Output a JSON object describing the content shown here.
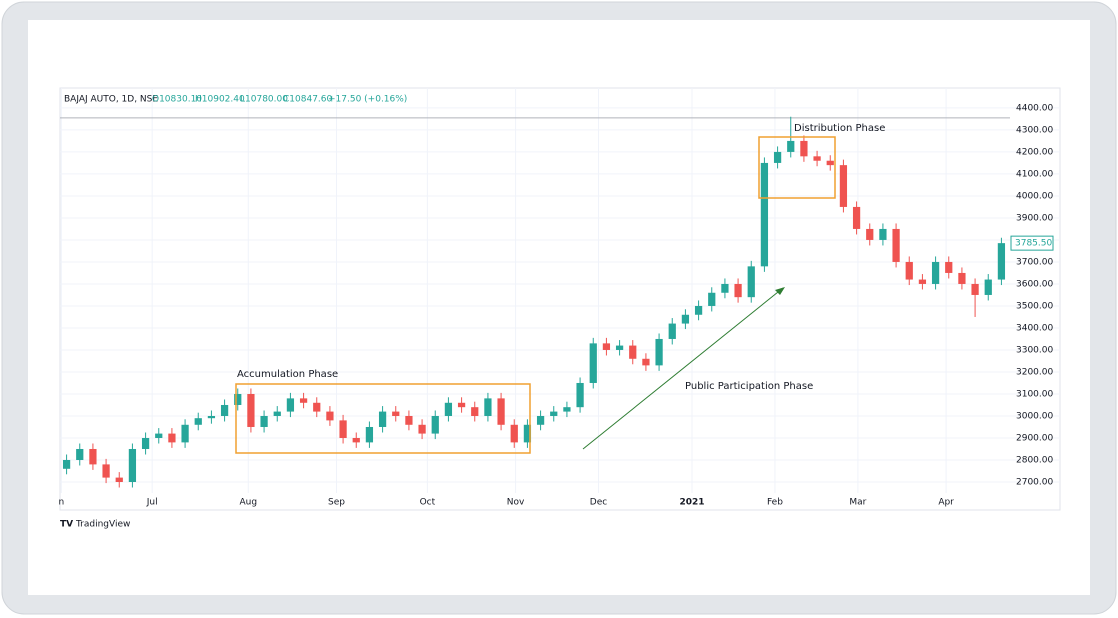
{
  "chart_data": {
    "type": "candlestick",
    "header": {
      "symbol": "BAJAJ AUTO, 1D, NSE",
      "open": "O10830.10",
      "high": "H10902.40",
      "low": "L10780.00",
      "close": "C10847.60",
      "change": "+17.50 (+0.16%)"
    },
    "open": [
      2760,
      2800,
      2850,
      2780,
      2720,
      2700,
      2850,
      2900,
      2920,
      2880,
      2960,
      2990,
      3000,
      3050,
      3100,
      2950,
      3000,
      3020,
      3080,
      3060,
      3020,
      2980,
      2900,
      2880,
      2950,
      3020,
      3000,
      2960,
      2920,
      3000,
      3060,
      3040,
      3000,
      3080,
      2960,
      2880,
      2960,
      3000,
      3020,
      3040,
      3150,
      3330,
      3300,
      3320,
      3260,
      3230,
      3350,
      3420,
      3460,
      3500,
      3560,
      3600,
      3540,
      3680,
      4150,
      4200,
      4250,
      4180,
      4160,
      4140,
      3950,
      3850,
      3800,
      3850,
      3700,
      3620,
      3600,
      3700,
      3650,
      3600,
      3550,
      3620
    ],
    "high": [
      2825,
      2875,
      2875,
      2805,
      2745,
      2875,
      2925,
      2945,
      2945,
      2985,
      3015,
      3025,
      3075,
      3125,
      3125,
      3025,
      3045,
      3105,
      3105,
      3085,
      3045,
      3005,
      2925,
      2975,
      3045,
      3045,
      3025,
      2985,
      3025,
      3085,
      3085,
      3065,
      3105,
      3105,
      2985,
      2985,
      3025,
      3045,
      3065,
      3175,
      3355,
      3355,
      3345,
      3345,
      3285,
      3375,
      3445,
      3485,
      3525,
      3585,
      3625,
      3625,
      3705,
      4175,
      4225,
      4360,
      4275,
      4205,
      4185,
      4165,
      3975,
      3875,
      3875,
      3875,
      3725,
      3645,
      3725,
      3725,
      3675,
      3625,
      3645,
      3810
    ],
    "low": [
      2735,
      2775,
      2755,
      2695,
      2675,
      2675,
      2825,
      2875,
      2855,
      2855,
      2935,
      2965,
      2975,
      3025,
      2925,
      2925,
      2975,
      2995,
      3035,
      2995,
      2955,
      2875,
      2855,
      2855,
      2925,
      2975,
      2935,
      2895,
      2895,
      2975,
      3015,
      2975,
      2975,
      2935,
      2855,
      2855,
      2935,
      2975,
      2995,
      3015,
      3125,
      3275,
      3275,
      3235,
      3205,
      3205,
      3325,
      3395,
      3435,
      3475,
      3535,
      3515,
      3515,
      3655,
      4125,
      4175,
      4155,
      4135,
      4115,
      3925,
      3825,
      3775,
      3775,
      3675,
      3595,
      3575,
      3575,
      3625,
      3575,
      3450,
      3525,
      3595
    ],
    "close": [
      2800,
      2850,
      2780,
      2720,
      2700,
      2850,
      2900,
      2920,
      2880,
      2960,
      2990,
      3000,
      3050,
      3100,
      2950,
      3000,
      3020,
      3080,
      3060,
      3020,
      2980,
      2900,
      2880,
      2950,
      3020,
      3000,
      2960,
      2920,
      3000,
      3060,
      3040,
      3000,
      3080,
      2960,
      2880,
      2960,
      3000,
      3020,
      3040,
      3150,
      3330,
      3300,
      3320,
      3260,
      3230,
      3350,
      3420,
      3460,
      3500,
      3560,
      3600,
      3540,
      3680,
      4150,
      4200,
      4250,
      4180,
      4160,
      4140,
      3950,
      3850,
      3800,
      3850,
      3700,
      3620,
      3600,
      3700,
      3650,
      3600,
      3550,
      3620,
      3785.5
    ],
    "last_price_label": "3785.50",
    "up_color": "#26a69a",
    "down_color": "#ef5350",
    "horizontal_line": 4355,
    "xlim": [
      -0.5,
      71.5
    ],
    "xticks": [
      {
        "value": -0.4,
        "label": "n"
      },
      {
        "value": 6.5,
        "label": "Jul"
      },
      {
        "value": 13.8,
        "label": "Aug"
      },
      {
        "value": 20.5,
        "label": "Sep"
      },
      {
        "value": 27.4,
        "label": "Oct"
      },
      {
        "value": 34.1,
        "label": "Nov"
      },
      {
        "value": 40.4,
        "label": "Dec"
      },
      {
        "value": 47.5,
        "label": "2021"
      },
      {
        "value": 53.8,
        "label": "Feb"
      },
      {
        "value": 60.1,
        "label": "Mar"
      },
      {
        "value": 66.8,
        "label": "Apr"
      }
    ],
    "ylim": [
      2650,
      4436
    ],
    "yticks": [
      {
        "value": 2700,
        "label": "2700.00"
      },
      {
        "value": 2800,
        "label": "2800.00"
      },
      {
        "value": 2900,
        "label": "2900.00"
      },
      {
        "value": 3000,
        "label": "3000.00"
      },
      {
        "value": 3100,
        "label": "3100.00"
      },
      {
        "value": 3200,
        "label": "3200.00"
      },
      {
        "value": 3300,
        "label": "3300.00"
      },
      {
        "value": 3400,
        "label": "3400.00"
      },
      {
        "value": 3500,
        "label": "3500.00"
      },
      {
        "value": 3600,
        "label": "3600.00"
      },
      {
        "value": 3700,
        "label": "3700.00"
      },
      {
        "value": 3800,
        "label": "3800.00"
      },
      {
        "value": 3900,
        "label": "3900.00"
      },
      {
        "value": 4000,
        "label": "4000.00"
      },
      {
        "value": 4100,
        "label": "4100.00"
      },
      {
        "value": 4200,
        "label": "4200.00"
      },
      {
        "value": 4300,
        "label": "4300.00"
      },
      {
        "value": 4400,
        "label": "4400.00"
      }
    ],
    "grid": true,
    "annotations": {
      "accumulation": "Accumulation Phase",
      "distribution": "Distribution Phase",
      "participation": "Public Participation Phase"
    },
    "brand": "TradingView"
  }
}
